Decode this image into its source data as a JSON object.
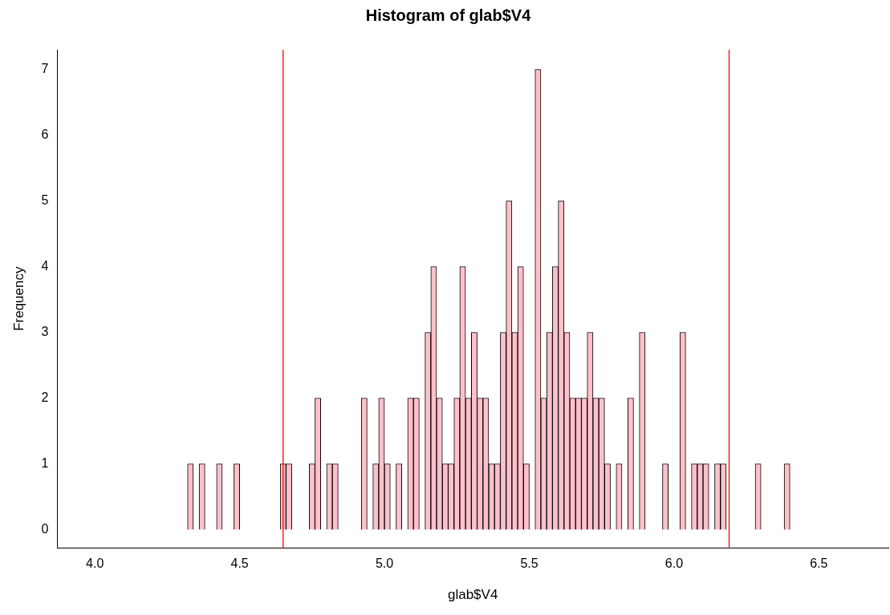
{
  "chart_data": {
    "type": "histogram",
    "title": "Histogram of glab$V4",
    "xlabel": "glab$V4",
    "ylabel": "Frequency",
    "bins": [
      4.32,
      4.34,
      4.36,
      4.38,
      4.4,
      4.42,
      4.44,
      4.46,
      4.48,
      4.5,
      4.52,
      4.54,
      4.56,
      4.58,
      4.6,
      4.62,
      4.64,
      4.66,
      4.68,
      4.7,
      4.72,
      4.74,
      4.76,
      4.78,
      4.8,
      4.82,
      4.84,
      4.86,
      4.88,
      4.9,
      4.92,
      4.94,
      4.96,
      4.98,
      5.0,
      5.02,
      5.04,
      5.06,
      5.08,
      5.1,
      5.12,
      5.14,
      5.16,
      5.18,
      5.2,
      5.22,
      5.24,
      5.26,
      5.28,
      5.3,
      5.32,
      5.34,
      5.36,
      5.38,
      5.4,
      5.42,
      5.44,
      5.46,
      5.48,
      5.5,
      5.52,
      5.54,
      5.56,
      5.58,
      5.6,
      5.62,
      5.64,
      5.66,
      5.68,
      5.7,
      5.72,
      5.74,
      5.76,
      5.78,
      5.8,
      5.82,
      5.84,
      5.86,
      5.88,
      5.9,
      5.92,
      5.94,
      5.96,
      5.98,
      6.0,
      6.02,
      6.04,
      6.06,
      6.08,
      6.1,
      6.12,
      6.14,
      6.16,
      6.18,
      6.2,
      6.22,
      6.24,
      6.26,
      6.28,
      6.3,
      6.32,
      6.34,
      6.36,
      6.38,
      6.4
    ],
    "values": [
      1,
      0,
      1,
      0,
      0,
      1,
      0,
      0,
      1,
      0,
      0,
      0,
      0,
      0,
      0,
      0,
      1,
      1,
      0,
      0,
      0,
      1,
      2,
      0,
      1,
      1,
      0,
      0,
      0,
      0,
      2,
      0,
      1,
      2,
      1,
      0,
      1,
      0,
      2,
      2,
      0,
      3,
      4,
      2,
      1,
      1,
      2,
      4,
      2,
      3,
      2,
      2,
      1,
      1,
      3,
      5,
      3,
      4,
      1,
      0,
      7,
      2,
      3,
      4,
      5,
      3,
      2,
      2,
      2,
      3,
      2,
      2,
      1,
      0,
      1,
      0,
      2,
      0,
      3,
      0,
      0,
      0,
      1,
      0,
      0,
      3,
      0,
      1,
      1,
      1,
      0,
      1,
      1,
      0,
      0,
      0,
      0,
      0,
      1,
      0,
      0,
      0,
      0,
      1
    ],
    "color": "#ffc0cb",
    "xlim": [
      3.87,
      6.74
    ],
    "xticks": [
      {
        "value": 4,
        "label": "4.0"
      },
      4.5,
      {
        "value": 5,
        "label": "5.0"
      },
      5.5,
      {
        "value": 6,
        "label": "6.0"
      },
      6.5
    ],
    "ylim": [
      -0.28,
      7.3
    ],
    "yticks": [
      0,
      1,
      2,
      3,
      4,
      5,
      6,
      7
    ],
    "ref_lines": [
      {
        "axis": "x",
        "value": 4.65,
        "color": "#ff0000"
      },
      {
        "axis": "x",
        "value": 6.19,
        "color": "#ff0000"
      }
    ],
    "grid": false
  }
}
